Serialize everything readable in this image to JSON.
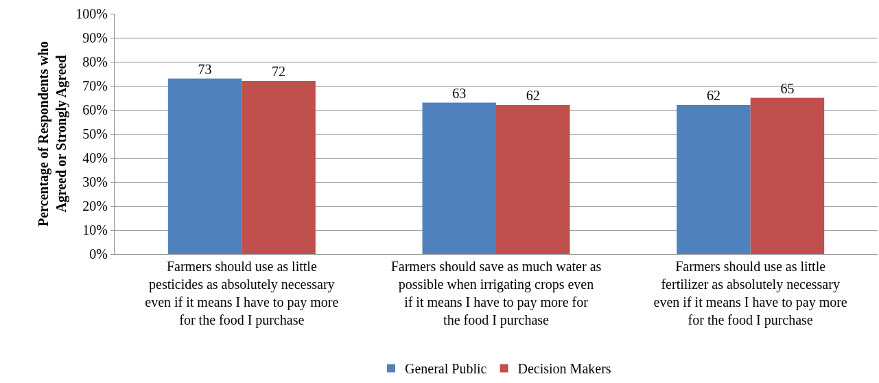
{
  "chart_data": {
    "type": "bar",
    "ylabel": "Percentage of Respondents who Agreed or Strongly Agreed",
    "categories": [
      "Farmers should use as little pesticides as absolutely necessary even if it means I have to pay more for the food I purchase",
      "Farmers should save as much water as possible when irrigating crops even if it means I have to pay more for the food I purchase",
      "Farmers should use as little fertilizer as absolutely necessary even if it means I have to pay more for the food I purchase"
    ],
    "series": [
      {
        "name": "General Public",
        "color": "#4f81bd",
        "values": [
          73,
          63,
          62
        ]
      },
      {
        "name": "Decision Makers",
        "color": "#c0504d",
        "values": [
          72,
          62,
          65
        ]
      }
    ],
    "ylim": [
      0,
      100
    ],
    "yticks": [
      {
        "value": 0,
        "label": "0%"
      },
      {
        "value": 10,
        "label": "10%"
      },
      {
        "value": 20,
        "label": "20%"
      },
      {
        "value": 30,
        "label": "30%"
      },
      {
        "value": 40,
        "label": "40%"
      },
      {
        "value": 50,
        "label": "50%"
      },
      {
        "value": 60,
        "label": "60%"
      },
      {
        "value": 70,
        "label": "70%"
      },
      {
        "value": 80,
        "label": "80%"
      },
      {
        "value": 90,
        "label": "90%"
      },
      {
        "value": 100,
        "label": "100%"
      }
    ],
    "grid": "y",
    "legend": "bottom",
    "data_labels": true
  }
}
